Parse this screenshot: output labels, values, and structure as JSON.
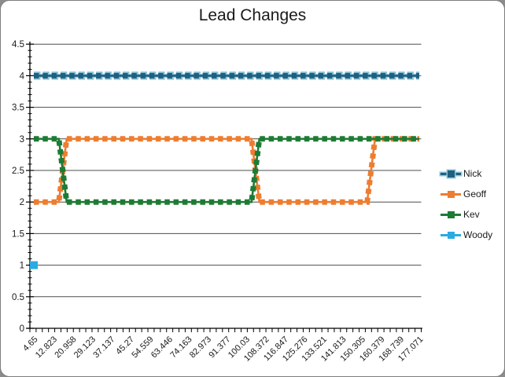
{
  "chart_data": {
    "type": "line",
    "title": "Lead Changes",
    "categories": [
      "4.65",
      "12.823",
      "20.958",
      "29.123",
      "37.137",
      "45.27",
      "54.559",
      "63.446",
      "74.163",
      "82.973",
      "91.377",
      "100.03",
      "108.372",
      "116.847",
      "125.276",
      "133.521",
      "141.813",
      "150.305",
      "160.379",
      "168.739",
      "177.071"
    ],
    "series": [
      {
        "name": "Nick",
        "color": "#20607F",
        "marker_outline": "#8FC6DC",
        "values": [
          4,
          4,
          4,
          4,
          4,
          4,
          4,
          4,
          4,
          4,
          4,
          4,
          4,
          4,
          4,
          4,
          4,
          4,
          4,
          4,
          4
        ]
      },
      {
        "name": "Geoff",
        "color": "#ED7D31",
        "values": [
          2,
          2,
          3,
          3,
          3,
          3,
          3,
          3,
          3,
          3,
          3,
          3,
          2,
          2,
          2,
          2,
          2,
          2,
          3,
          3,
          3
        ]
      },
      {
        "name": "Kev",
        "color": "#1E7B34",
        "values": [
          3,
          3,
          2,
          2,
          2,
          2,
          2,
          2,
          2,
          2,
          2,
          2,
          3,
          3,
          3,
          3,
          3,
          3,
          3,
          3,
          3
        ]
      },
      {
        "name": "Woody",
        "color": "#29ABE1",
        "values": [
          1,
          null,
          null,
          null,
          null,
          null,
          null,
          null,
          null,
          null,
          null,
          null,
          null,
          null,
          null,
          null,
          null,
          null,
          null,
          null,
          null
        ]
      }
    ],
    "y_axis": {
      "min": 0,
      "max": 4.5,
      "major_unit": 0.5,
      "minor_unit": 0.1,
      "tick_labels": [
        "0",
        "0.5",
        "1",
        "1.5",
        "2",
        "2.5",
        "3",
        "3.5",
        "4",
        "4.5"
      ]
    },
    "x_axis": {
      "label_rotation_deg": -45
    },
    "legend_position": "right",
    "grid": "horizontal-major",
    "line_style": "dashed-with-square-markers"
  },
  "colors": {
    "grid": "#4d4d4d",
    "axis": "#000000",
    "text": "#1a1a1a",
    "page_bg": "#8c8c8c",
    "chart_bg": "#ffffff",
    "frame_border": "#7d7d7d"
  }
}
